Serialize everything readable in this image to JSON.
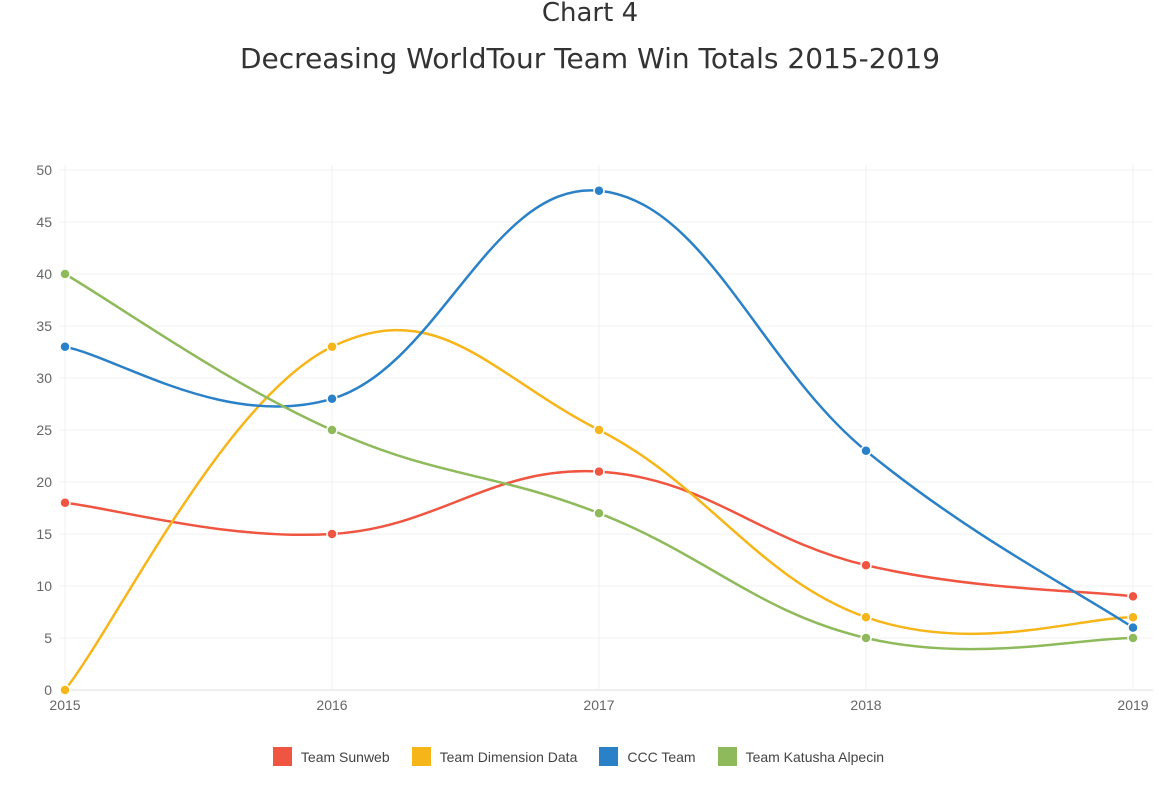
{
  "chart_data": {
    "type": "line",
    "title": "Chart 4",
    "subtitle": "Decreasing WorldTour Team Win Totals 2015-2019",
    "xlabel": "",
    "ylabel": "",
    "categories": [
      "2015",
      "2016",
      "2017",
      "2018",
      "2019"
    ],
    "ylim": [
      0,
      50
    ],
    "yticks": [
      0,
      5,
      10,
      15,
      20,
      25,
      30,
      35,
      40,
      45,
      50
    ],
    "grid": true,
    "smooth": true,
    "legend_position": "bottom",
    "series": [
      {
        "name": "Team Sunweb",
        "color": "#f05541",
        "values": [
          18,
          15,
          21,
          12,
          9
        ]
      },
      {
        "name": "Team Dimension Data",
        "color": "#f6b519",
        "values": [
          0,
          33,
          25,
          7,
          7
        ]
      },
      {
        "name": "CCC Team",
        "color": "#2a81c8",
        "values": [
          33,
          28,
          48,
          23,
          6
        ]
      },
      {
        "name": "Team Katusha Alpecin",
        "color": "#8fba5b",
        "values": [
          40,
          25,
          17,
          5,
          5
        ]
      }
    ]
  }
}
